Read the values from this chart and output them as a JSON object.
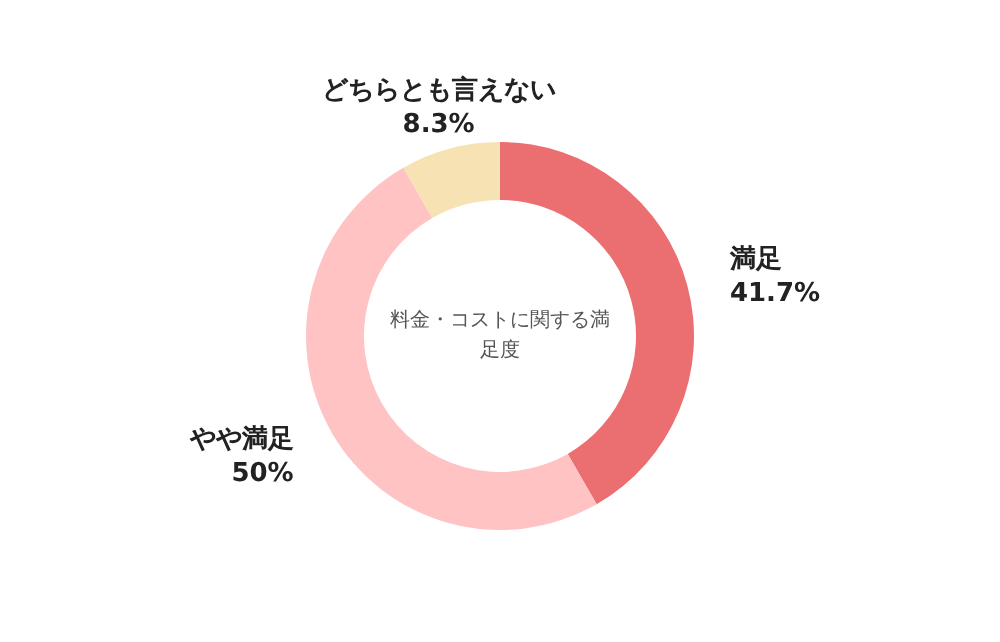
{
  "chart_data": {
    "type": "donut",
    "title": "料金・コストに関する満足度",
    "categories": [
      "満足",
      "やや満足",
      "どちらとも言えない"
    ],
    "values": [
      41.7,
      50,
      8.3
    ],
    "value_labels": [
      "41.7%",
      "50%",
      "8.3%"
    ],
    "colors": [
      "#eb6f70",
      "#ffc3c4",
      "#f6e2b3"
    ],
    "legend": false
  }
}
